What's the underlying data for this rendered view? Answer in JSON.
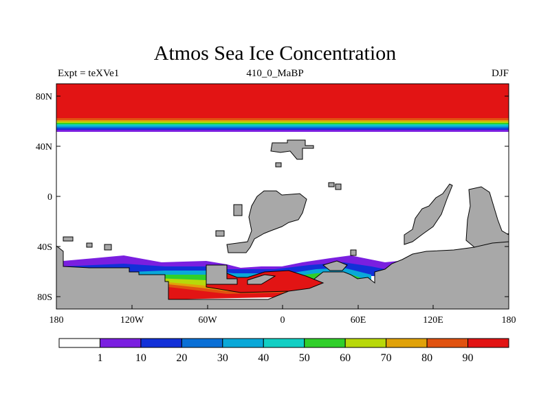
{
  "title": "Atmos Sea Ice Concentration",
  "header": {
    "experiment": "Expt = teXVe1",
    "timestamp": "410_0_MaBP",
    "season": "DJF"
  },
  "axes": {
    "x_ticks": [
      "180",
      "120W",
      "60W",
      "0",
      "60E",
      "120E",
      "180"
    ],
    "y_ticks": [
      "80N",
      "40N",
      "0",
      "40S",
      "80S"
    ]
  },
  "colorbar": {
    "colors": [
      "#ffffff",
      "#7a1fe0",
      "#1230d8",
      "#0a6fd6",
      "#0aa8d8",
      "#12cfc4",
      "#30cf2a",
      "#b8d80a",
      "#e0a20a",
      "#e05210",
      "#e21414"
    ],
    "labels": [
      "1",
      "10",
      "20",
      "30",
      "40",
      "50",
      "60",
      "70",
      "80",
      "90"
    ]
  },
  "colors": {
    "land": "#a8a8a8",
    "ice_high": "#e21414",
    "ice_edge_orange": "#e05210"
  }
}
